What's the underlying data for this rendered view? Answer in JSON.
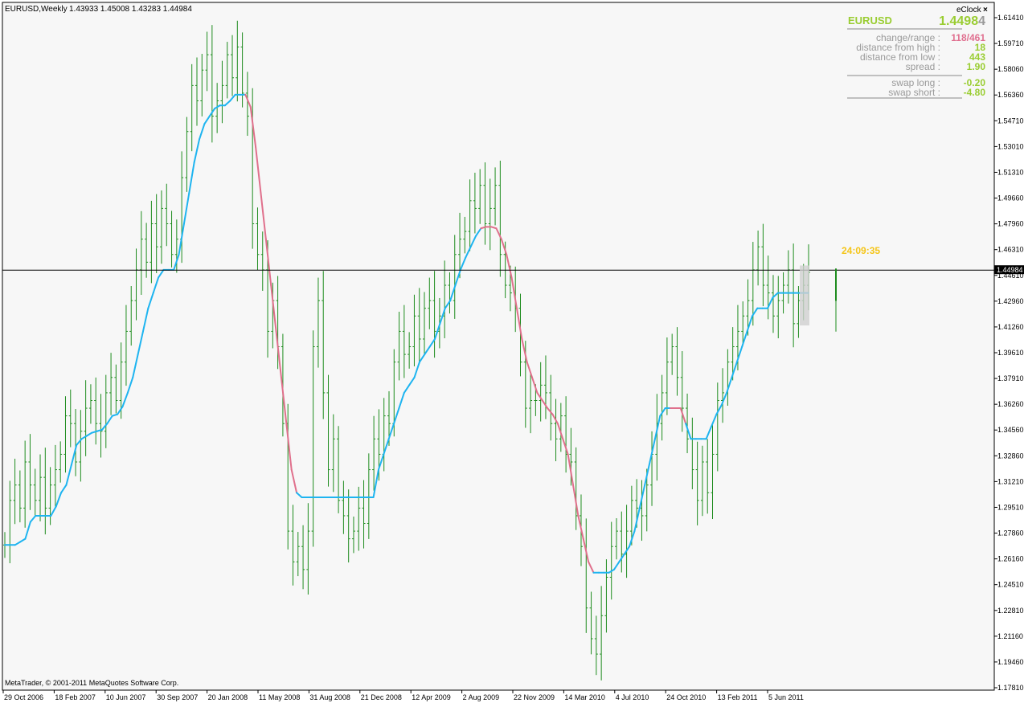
{
  "header": {
    "title": "EURUSD,Weekly",
    "ohlc": "1.43933 1.45008 1.43283 1.44984"
  },
  "copyright": "MetaTrader, © 2001-2011 MetaQuotes Software Corp.",
  "eclock": {
    "title": "eClock",
    "close_glyph": "×",
    "symbol": "EURUSD",
    "price_main": "1.4498",
    "price_last": "4",
    "rows": [
      {
        "label": "change/range :",
        "value": "118/461",
        "color": "#E07090"
      },
      {
        "label": "distance from high :",
        "value": "18",
        "color": "#9ACD32"
      },
      {
        "label": "distance from low :",
        "value": "443",
        "color": "#9ACD32"
      },
      {
        "label": "spread :",
        "value": "1.90",
        "color": "#9ACD32"
      }
    ],
    "swap_rows": [
      {
        "label": "swap long :",
        "value": "-0.20",
        "color": "#9ACD32"
      },
      {
        "label": "swap short :",
        "value": "-4.80",
        "color": "#9ACD32"
      }
    ],
    "timer": "24:09:35",
    "symbol_color": "#9ACD32",
    "price_color": "#9ACD32"
  },
  "chart_data": {
    "type": "bar",
    "symbol": "EURUSD",
    "timeframe": "Weekly",
    "ylim": [
      1.1785,
      1.6155
    ],
    "y_ticks": [
      "1.61410",
      "1.59710",
      "1.58060",
      "1.56360",
      "1.54710",
      "1.53010",
      "1.51310",
      "1.49660",
      "1.47960",
      "1.46310",
      "1.44610",
      "1.42960",
      "1.41260",
      "1.39610",
      "1.37910",
      "1.36260",
      "1.34560",
      "1.32860",
      "1.31210",
      "1.29510",
      "1.27860",
      "1.26160",
      "1.24510",
      "1.22810",
      "1.21160",
      "1.19460",
      "1.17810"
    ],
    "x_ticks": [
      "29 Oct 2006",
      "18 Feb 2007",
      "10 Jun 2007",
      "30 Sep 2007",
      "20 Jan 2008",
      "11 May 2008",
      "31 Aug 2008",
      "21 Dec 2008",
      "12 Apr 2009",
      "2 Aug 2009",
      "22 Nov 2009",
      "14 Mar 2010",
      "4 Jul 2010",
      "24 Oct 2010",
      "13 Feb 2011",
      "5 Jun 2011"
    ],
    "current_price": 1.44984,
    "current_price_label": "1.44984",
    "bar_color": "#1E8C1E",
    "indicator_up_color": "#1EB4F0",
    "indicator_down_color": "#E0708C",
    "price_path": [
      1.271,
      1.3,
      1.31,
      1.295,
      1.325,
      1.31,
      1.3,
      1.315,
      1.295,
      1.31,
      1.32,
      1.33,
      1.355,
      1.35,
      1.325,
      1.345,
      1.36,
      1.365,
      1.35,
      1.345,
      1.37,
      1.38,
      1.365,
      1.39,
      1.41,
      1.43,
      1.45,
      1.47,
      1.455,
      1.48,
      1.465,
      1.49,
      1.48,
      1.46,
      1.47,
      1.51,
      1.54,
      1.57,
      1.56,
      1.58,
      1.59,
      1.55,
      1.56,
      1.57,
      1.59,
      1.575,
      1.595,
      1.565,
      1.55,
      1.48,
      1.46,
      1.45,
      1.41,
      1.43,
      1.4,
      1.35,
      1.28,
      1.26,
      1.27,
      1.255,
      1.28,
      1.4,
      1.43,
      1.37,
      1.32,
      1.34,
      1.3,
      1.29,
      1.275,
      1.28,
      1.295,
      1.285,
      1.32,
      1.34,
      1.33,
      1.355,
      1.35,
      1.39,
      1.41,
      1.395,
      1.4,
      1.42,
      1.405,
      1.425,
      1.43,
      1.41,
      1.42,
      1.44,
      1.43,
      1.46,
      1.47,
      1.475,
      1.495,
      1.49,
      1.505,
      1.48,
      1.49,
      1.505,
      1.46,
      1.44,
      1.435,
      1.425,
      1.39,
      1.36,
      1.365,
      1.365,
      1.375,
      1.37,
      1.35,
      1.34,
      1.355,
      1.33,
      1.325,
      1.29,
      1.27,
      1.23,
      1.21,
      1.2,
      1.225,
      1.25,
      1.27,
      1.28,
      1.265,
      1.28,
      1.3,
      1.295,
      1.29,
      1.31,
      1.33,
      1.35,
      1.37,
      1.39,
      1.4,
      1.38,
      1.36,
      1.34,
      1.32,
      1.3,
      1.325,
      1.305,
      1.33,
      1.365,
      1.37,
      1.39,
      1.4,
      1.41,
      1.42,
      1.43,
      1.45,
      1.465,
      1.44,
      1.435,
      1.42,
      1.43,
      1.44,
      1.45,
      1.415,
      1.43,
      1.44,
      1.4484
    ],
    "bar_range": 0.028,
    "indicator": [
      1.271,
      1.271,
      1.271,
      1.273,
      1.275,
      1.286,
      1.29,
      1.29,
      1.29,
      1.29,
      1.296,
      1.305,
      1.31,
      1.323,
      1.336,
      1.34,
      1.342,
      1.344,
      1.345,
      1.346,
      1.35,
      1.355,
      1.356,
      1.361,
      1.37,
      1.38,
      1.395,
      1.41,
      1.425,
      1.435,
      1.445,
      1.45,
      1.45,
      1.45,
      1.46,
      1.48,
      1.5,
      1.52,
      1.535,
      1.545,
      1.55,
      1.555,
      1.557,
      1.557,
      1.56,
      1.564,
      1.564,
      1.564,
      1.556,
      1.53,
      1.5,
      1.47,
      1.44,
      1.41,
      1.38,
      1.35,
      1.32,
      1.305,
      1.302,
      1.302,
      1.302,
      1.302,
      1.302,
      1.302,
      1.302,
      1.302,
      1.302,
      1.302,
      1.302,
      1.302,
      1.302,
      1.302,
      1.302,
      1.32,
      1.33,
      1.34,
      1.35,
      1.36,
      1.37,
      1.375,
      1.38,
      1.39,
      1.395,
      1.4,
      1.405,
      1.415,
      1.425,
      1.43,
      1.44,
      1.45,
      1.458,
      1.465,
      1.472,
      1.477,
      1.478,
      1.478,
      1.477,
      1.47,
      1.46,
      1.445,
      1.425,
      1.405,
      1.39,
      1.38,
      1.37,
      1.365,
      1.36,
      1.356,
      1.35,
      1.34,
      1.33,
      1.31,
      1.29,
      1.275,
      1.26,
      1.253,
      1.253,
      1.253,
      1.253,
      1.255,
      1.26,
      1.265,
      1.27,
      1.28,
      1.295,
      1.31,
      1.325,
      1.34,
      1.355,
      1.36,
      1.36,
      1.36,
      1.36,
      1.35,
      1.34,
      1.34,
      1.34,
      1.34,
      1.348,
      1.356,
      1.362,
      1.37,
      1.38,
      1.39,
      1.4,
      1.41,
      1.42,
      1.425,
      1.425,
      1.425,
      1.432,
      1.435,
      1.435,
      1.435,
      1.435,
      1.435,
      1.435,
      1.435
    ],
    "indicator_trend": [
      1,
      1,
      1,
      1,
      1,
      1,
      1,
      1,
      1,
      1,
      1,
      1,
      1,
      1,
      1,
      1,
      1,
      1,
      1,
      1,
      1,
      1,
      1,
      1,
      1,
      1,
      1,
      1,
      1,
      1,
      1,
      1,
      1,
      1,
      1,
      1,
      1,
      1,
      1,
      1,
      1,
      1,
      1,
      1,
      1,
      1,
      1,
      1,
      -1,
      -1,
      -1,
      -1,
      -1,
      -1,
      -1,
      -1,
      -1,
      -1,
      1,
      1,
      1,
      1,
      1,
      1,
      1,
      1,
      1,
      1,
      1,
      1,
      1,
      1,
      1,
      1,
      1,
      1,
      1,
      1,
      1,
      1,
      1,
      1,
      1,
      1,
      1,
      1,
      1,
      1,
      1,
      1,
      1,
      1,
      1,
      1,
      -1,
      -1,
      -1,
      -1,
      -1,
      -1,
      -1,
      -1,
      -1,
      -1,
      -1,
      -1,
      -1,
      -1,
      -1,
      -1,
      -1,
      -1,
      -1,
      -1,
      -1,
      -1,
      1,
      1,
      1,
      1,
      1,
      1,
      1,
      1,
      1,
      1,
      1,
      1,
      1,
      1,
      1,
      -1,
      -1,
      -1,
      1,
      1,
      1,
      1,
      1,
      1,
      1,
      1,
      1,
      1,
      1,
      1,
      1,
      1,
      1,
      1,
      1,
      1,
      1,
      1,
      1,
      1,
      1,
      1,
      1,
      1,
      1,
      1
    ]
  }
}
